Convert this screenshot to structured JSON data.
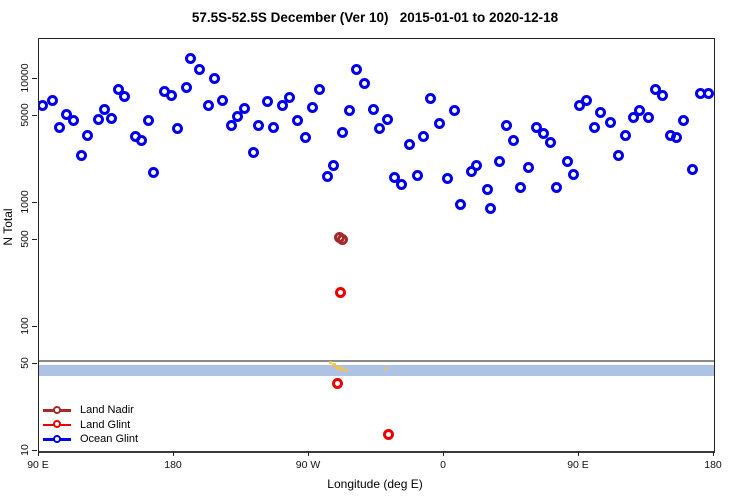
{
  "title": "57.5S-52.5S December (Ver 10)   2015-01-01 to 2020-12-18",
  "axes": {
    "x_label": "Longitude (deg E)",
    "y_label": "N Total",
    "x_ticks": [
      {
        "label": "90 E",
        "lon": 90
      },
      {
        "label": "180",
        "lon": 180
      },
      {
        "label": "90 W",
        "lon": 270
      },
      {
        "label": "0",
        "lon": 360
      },
      {
        "label": "90 E",
        "lon": 450
      },
      {
        "label": "180",
        "lon": 540
      }
    ],
    "y_ticks": [
      {
        "label": "10000",
        "n": 10000
      },
      {
        "label": "5000",
        "n": 5000
      },
      {
        "label": "1000",
        "n": 1000
      },
      {
        "label": "500",
        "n": 500
      },
      {
        "label": "100",
        "n": 100
      },
      {
        "label": "50",
        "n": 50
      },
      {
        "label": "10",
        "n": 10
      }
    ]
  },
  "chart_data": {
    "type": "scatter",
    "title": "57.5S-52.5S December (Ver 10)   2015-01-01 to 2020-12-18",
    "xlabel": "Longitude (deg E)",
    "ylabel": "N Total",
    "x_axis": {
      "range_deg": [
        90,
        540
      ],
      "note": "longitude axis wraps eastward: 90E,180,90W,0,90E,180"
    },
    "y_axis": {
      "scale": "log10",
      "range": [
        10,
        21000
      ]
    },
    "grid": false,
    "legend_position": "bottom-left",
    "reference_line": {
      "n": 53,
      "color": "#8a8a8a"
    },
    "reference_band": {
      "n_min": 40,
      "n_max": 49,
      "color": "#aec3e3"
    },
    "flag_marks": {
      "color": "#f2c14e",
      "points": [
        [
          284.0,
          52,
          3
        ],
        [
          286.7,
          49,
          4
        ],
        [
          289.3,
          47,
          4
        ],
        [
          292.0,
          46,
          4
        ],
        [
          294.7,
          45,
          3
        ],
        [
          321.3,
          46,
          3
        ]
      ]
    },
    "series": [
      {
        "name": "Land Nadir",
        "color": "#a52a2a",
        "marker": "open-circle",
        "points": [
          [
            290.3,
            525
          ],
          [
            292.3,
            505
          ]
        ]
      },
      {
        "name": "Land Glint",
        "color": "#ee0000",
        "marker": "open-circle",
        "points": [
          [
            291.3,
            190
          ],
          [
            288.7,
            35
          ],
          [
            322.9,
            13.5
          ]
        ]
      },
      {
        "name": "Ocean Glint",
        "color": "#0000ee",
        "marker": "open-circle",
        "points": [
          [
            92.2,
            6100
          ],
          [
            98.9,
            6700
          ],
          [
            142.9,
            8300
          ],
          [
            147.3,
            7200
          ],
          [
            108.2,
            5200
          ],
          [
            113.3,
            4650
          ],
          [
            103.8,
            4100
          ],
          [
            133.5,
            5700
          ],
          [
            129.5,
            4750
          ],
          [
            138.5,
            4800
          ],
          [
            122.5,
            3500
          ],
          [
            162.9,
            4650
          ],
          [
            154.5,
            3450
          ],
          [
            158.5,
            3200
          ],
          [
            118.5,
            2400
          ],
          [
            166.0,
            1760
          ],
          [
            190.9,
            14600
          ],
          [
            197.1,
            12000
          ],
          [
            206.9,
            10100
          ],
          [
            173.5,
            8000
          ],
          [
            178.0,
            7400
          ],
          [
            188.0,
            8500
          ],
          [
            202.9,
            6100
          ],
          [
            212.5,
            6700
          ],
          [
            227.3,
            5800
          ],
          [
            222.0,
            5000
          ],
          [
            218.0,
            4200
          ],
          [
            236.2,
            4200
          ],
          [
            182.5,
            4000
          ],
          [
            242.0,
            6600
          ],
          [
            233.1,
            2550
          ],
          [
            301.5,
            12000
          ],
          [
            307.1,
            9200
          ],
          [
            277.1,
            8300
          ],
          [
            257.1,
            7100
          ],
          [
            252.2,
            6100
          ],
          [
            272.2,
            5900
          ],
          [
            296.7,
            5600
          ],
          [
            312.7,
            5700
          ],
          [
            262.2,
            4600
          ],
          [
            246.0,
            4100
          ],
          [
            292.2,
            3700
          ],
          [
            316.7,
            4000
          ],
          [
            267.8,
            3400
          ],
          [
            286.0,
            2000
          ],
          [
            282.0,
            1650
          ],
          [
            351.3,
            6900
          ],
          [
            366.9,
            5600
          ],
          [
            322.5,
            4750
          ],
          [
            357.3,
            4400
          ],
          [
            346.2,
            3450
          ],
          [
            337.3,
            2970
          ],
          [
            327.3,
            1600
          ],
          [
            331.8,
            1420
          ],
          [
            342.5,
            1660
          ],
          [
            362.5,
            1570
          ],
          [
            378.0,
            1780
          ],
          [
            381.8,
            2000
          ],
          [
            388.7,
            1280
          ],
          [
            370.7,
            980
          ],
          [
            391.3,
            910
          ],
          [
            450.2,
            6100
          ],
          [
            455.1,
            6700
          ],
          [
            464.0,
            5350
          ],
          [
            460.0,
            4100
          ],
          [
            401.8,
            4250
          ],
          [
            421.8,
            4100
          ],
          [
            426.2,
            3650
          ],
          [
            430.7,
            3100
          ],
          [
            406.2,
            3200
          ],
          [
            396.9,
            2150
          ],
          [
            416.2,
            1930
          ],
          [
            442.2,
            2170
          ],
          [
            446.2,
            1700
          ],
          [
            411.1,
            1330
          ],
          [
            435.1,
            1330
          ],
          [
            501.3,
            8300
          ],
          [
            505.8,
            7300
          ],
          [
            531.3,
            7700
          ],
          [
            536.2,
            7600
          ],
          [
            471.3,
            4450
          ],
          [
            490.2,
            5550
          ],
          [
            486.5,
            4900
          ],
          [
            496.5,
            4900
          ],
          [
            480.7,
            3500
          ],
          [
            511.3,
            3500
          ],
          [
            515.3,
            3400
          ],
          [
            519.8,
            4650
          ],
          [
            476.2,
            2420
          ],
          [
            525.8,
            1870
          ]
        ]
      }
    ]
  }
}
